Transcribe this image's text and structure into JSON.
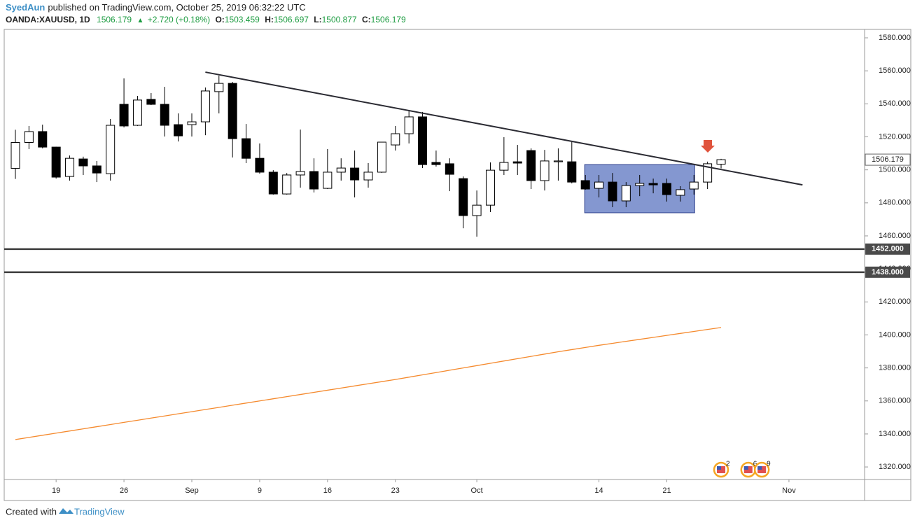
{
  "header": {
    "author": "SyedAun",
    "published": "published on TradingView.com, October 25, 2019 06:32:22 UTC",
    "symbol": "OANDA:XAUUSD, 1D",
    "change_arrow": "▲",
    "change": "+2.720 (+0.18%)",
    "ohlc_labels": [
      "O:",
      "H:",
      "L:",
      "C:"
    ]
  },
  "footer": {
    "created": "Created with",
    "brand": "TradingView"
  },
  "chart_data": {
    "type": "candlestick",
    "categories": [
      null,
      null,
      null,
      "19",
      null,
      null,
      null,
      null,
      "26",
      null,
      null,
      null,
      null,
      "Sep",
      null,
      null,
      null,
      null,
      "9",
      null,
      null,
      null,
      null,
      "16",
      null,
      null,
      null,
      null,
      "23",
      null,
      null,
      null,
      null,
      null,
      "Oct",
      null,
      null,
      null,
      null,
      null,
      null,
      null,
      null,
      "14",
      null,
      null,
      null,
      null,
      "21",
      null,
      null,
      null,
      null,
      null,
      null,
      null,
      null,
      "Nov",
      null,
      null,
      null,
      null,
      null
    ],
    "open": [
      1500.9,
      1516.6,
      1523.2,
      1513.8,
      1496,
      1506.6,
      1502.4,
      1497.7,
      1539.7,
      1527,
      1542.7,
      1539.7,
      1527.4,
      1527.4,
      1529.1,
      1547.4,
      1552.4,
      1518.9,
      1507,
      1498.6,
      1485.4,
      1496.9,
      1499,
      1488.8,
      1498.6,
      1501.1,
      1493.9,
      1498.6,
      1515.1,
      1521.9,
      1532.1,
      1504.5,
      1503.7,
      1494.7,
      1472.3,
      1478.6,
      1499.8,
      1504.9,
      1511.7,
      1493.5,
      1504.9,
      1504.9,
      1493.5,
      1488.8,
      1492.6,
      1481.2,
      1490.5,
      1491.8,
      1491.8,
      1484.6,
      1488.4,
      1492.6,
      1503.459,
      null,
      null,
      null,
      null,
      null,
      null,
      null,
      null,
      null,
      null
    ],
    "high": [
      1524.3,
      1526.6,
      1527.4,
      1514,
      1508.7,
      1508,
      1505.4,
      1530.8,
      1555.4,
      1544.8,
      1546.5,
      1550.3,
      1534.2,
      1534.2,
      1549.9,
      1557.1,
      1553.3,
      1527.8,
      1516,
      1499.8,
      1498.1,
      1524.4,
      1507,
      1512.6,
      1507,
      1511.7,
      1504.1,
      1516.8,
      1526.6,
      1536.3,
      1535.1,
      1511.7,
      1507,
      1496,
      1487.5,
      1504.5,
      1519.8,
      1515.1,
      1513,
      1512.1,
      1513,
      1517.2,
      1496.9,
      1496.9,
      1498.1,
      1492.6,
      1496.9,
      1494.7,
      1494.7,
      1490.1,
      1496.9,
      1505,
      1506.697,
      null,
      null,
      null,
      null,
      null,
      null,
      null,
      null,
      null,
      null
    ],
    "low": [
      1494.5,
      1512.6,
      1513,
      1494.7,
      1493.5,
      1496.9,
      1492.6,
      1493.5,
      1525.7,
      1526.6,
      1539.3,
      1520.2,
      1517.2,
      1520.2,
      1521,
      1534.2,
      1507.5,
      1504.1,
      1497.7,
      1485,
      1485,
      1489.2,
      1486.3,
      1488.4,
      1493.5,
      1483.3,
      1489.2,
      1498.2,
      1511.7,
      1516,
      1501.1,
      1502,
      1487.1,
      1464.6,
      1459.5,
      1474.4,
      1496.9,
      1496.9,
      1488.4,
      1487.5,
      1493.5,
      1491.8,
      1488,
      1483.3,
      1477.4,
      1477.4,
      1484.1,
      1485.8,
      1480.8,
      1480.8,
      1485,
      1488.4,
      1500.877,
      null,
      null,
      null,
      null,
      null,
      null,
      null,
      null,
      null,
      null
    ],
    "close": [
      1516.6,
      1523.2,
      1513.8,
      1495.6,
      1507,
      1502.4,
      1498.1,
      1527,
      1526.6,
      1542.3,
      1539.7,
      1527,
      1520.6,
      1529.1,
      1547.8,
      1552.4,
      1518.9,
      1507,
      1498.6,
      1485.4,
      1496.9,
      1499,
      1488.4,
      1498.6,
      1501.1,
      1493.9,
      1498.6,
      1516.8,
      1521.9,
      1532.1,
      1503.2,
      1503.2,
      1497.3,
      1472.3,
      1478.6,
      1499.8,
      1504.5,
      1504.1,
      1493.5,
      1505.4,
      1505.4,
      1492.6,
      1488.4,
      1492.6,
      1481.2,
      1490.5,
      1491.8,
      1490.9,
      1485,
      1488,
      1492.6,
      1503.7,
      1506.179,
      null,
      null,
      null,
      null,
      null,
      null,
      null,
      null,
      null,
      null
    ],
    "up_color": "#ffffff",
    "down_color": "#000000",
    "ma": {
      "color": "#f58a2e",
      "values": [
        1336.6,
        1337.9,
        1339.2,
        1340.5,
        1341.8,
        1343.1,
        1344.4,
        1345.7,
        1347.0,
        1348.3,
        1349.6,
        1350.9,
        1352.2,
        1353.5,
        1354.8,
        1356.1,
        1357.4,
        1358.7,
        1360.0,
        1361.3,
        1362.6,
        1363.9,
        1365.2,
        1366.5,
        1367.8,
        1369.1,
        1370.4,
        1371.7,
        1373.0,
        1374.4,
        1375.8,
        1377.2,
        1378.6,
        1380.0,
        1381.4,
        1382.8,
        1384.2,
        1385.6,
        1387.0,
        1388.4,
        1389.8,
        1391.1,
        1392.4,
        1393.7,
        1394.9,
        1396.1,
        1397.3,
        1398.5,
        1399.7,
        1400.9,
        1402.1,
        1403.3,
        1404.5,
        null,
        null,
        null,
        null,
        null,
        null,
        null,
        null,
        null,
        null
      ]
    },
    "ylim": [
      1312.4,
      1585.1
    ],
    "yticks": [
      {
        "value": 1320,
        "label": "1320.000"
      },
      {
        "value": 1340,
        "label": "1340.000"
      },
      {
        "value": 1360,
        "label": "1360.000"
      },
      {
        "value": 1380,
        "label": "1380.000"
      },
      {
        "value": 1400,
        "label": "1400.000"
      },
      {
        "value": 1420,
        "label": "1420.000"
      },
      {
        "value": 1440,
        "label": "1440.000"
      },
      {
        "value": 1460,
        "label": "1460.000"
      },
      {
        "value": 1480,
        "label": "1480.000"
      },
      {
        "value": 1500,
        "label": "1500.000"
      },
      {
        "value": 1520,
        "label": "1520.000"
      },
      {
        "value": 1540,
        "label": "1540.000"
      },
      {
        "value": 1560,
        "label": "1560.000"
      },
      {
        "value": 1580,
        "label": "1580.000"
      }
    ],
    "hlines": [
      {
        "value": 1452,
        "label": "1452.000"
      },
      {
        "value": 1438,
        "label": "1438.000"
      }
    ],
    "trendline": {
      "x": [
        14,
        58
      ],
      "y": [
        1559.2,
        1490.9
      ]
    },
    "box": {
      "x": [
        42,
        50
      ],
      "y": [
        1503.2,
        1474
      ],
      "color": "#6f85c8"
    },
    "events": [
      {
        "index": 52,
        "count": 2
      },
      {
        "index": 54,
        "count": 6
      },
      {
        "index": 55,
        "count": 9
      }
    ]
  }
}
